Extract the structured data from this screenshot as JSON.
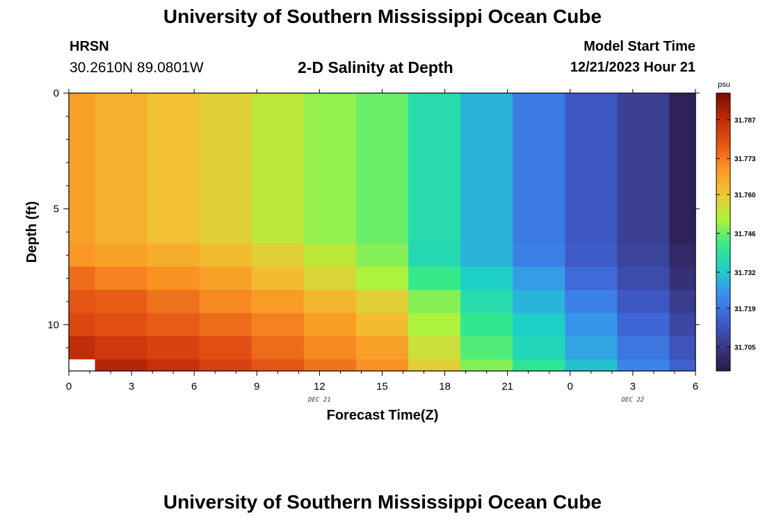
{
  "header": {
    "title": "University of Southern Mississippi Ocean Cube",
    "station": "HRSN",
    "coords": "30.2610N  89.0801W",
    "subtitle": "2-D Salinity at Depth",
    "model_label": "Model Start Time",
    "model_time": "12/21/2023 Hour 21"
  },
  "footer": {
    "title": "University of Southern Mississippi Ocean Cube"
  },
  "chart_data": {
    "type": "heatmap",
    "title": "2-D Salinity at Depth",
    "xlabel": "Forecast Time(Z)",
    "ylabel": "Depth (ft)",
    "x_tick_labels": [
      "0",
      "3",
      "6",
      "9",
      "12",
      "15",
      "18",
      "21",
      "0",
      "3",
      "6"
    ],
    "day_labels": [
      {
        "text": "DEC 21",
        "at_tick": 4
      },
      {
        "text": "DEC 22",
        "at_tick": 9
      }
    ],
    "y_ticks": [
      0,
      5,
      10
    ],
    "ylim": [
      0,
      12
    ],
    "y_inverted": true,
    "color_scale": {
      "unit": "psu",
      "tick_labels": [
        "31.787",
        "31.773",
        "31.760",
        "31.746",
        "31.732",
        "31.719",
        "31.705"
      ],
      "min": 31.6964,
      "max": 31.7966,
      "colors": [
        "#2b1845",
        "#3a3a8a",
        "#3f5fcf",
        "#3a8ef0",
        "#1ecfc8",
        "#35ea8a",
        "#aef23c",
        "#f0c434",
        "#fb9624",
        "#e45215",
        "#c02b08",
        "#7a0d03"
      ]
    },
    "time_bins": [
      "0-1.25",
      "1.25-3.75",
      "3.75-6.25",
      "6.25-8.75",
      "8.75-11.25",
      "11.25-13.75",
      "13.75-16.25",
      "16.25-18.75",
      "18.75-21.25",
      "21.25-23.75",
      "23.75-26.25",
      "26.25-28.75",
      "28.75-30"
    ],
    "depth_bins_ft": [
      [
        0,
        6.5
      ],
      [
        6.5,
        7.5
      ],
      [
        7.5,
        8.5
      ],
      [
        8.5,
        9.5
      ],
      [
        9.5,
        10.5
      ],
      [
        10.5,
        11.5
      ],
      [
        11.5,
        12
      ]
    ],
    "values": [
      [
        31.767,
        31.764,
        31.761,
        31.758,
        31.753,
        31.749,
        31.746,
        31.737,
        31.729,
        31.72,
        31.713,
        31.707,
        31.699
      ],
      [
        31.769,
        31.767,
        31.765,
        31.762,
        31.758,
        31.753,
        31.748,
        31.736,
        31.729,
        31.721,
        31.714,
        31.708,
        31.701
      ],
      [
        31.775,
        31.772,
        31.77,
        31.767,
        31.762,
        31.757,
        31.751,
        31.742,
        31.733,
        31.726,
        31.717,
        31.71,
        31.703
      ],
      [
        31.778,
        31.777,
        31.774,
        31.771,
        31.768,
        31.763,
        31.758,
        31.748,
        31.737,
        31.729,
        31.721,
        31.713,
        31.706
      ],
      [
        31.781,
        31.779,
        31.777,
        31.775,
        31.772,
        31.768,
        31.762,
        31.751,
        31.741,
        31.733,
        31.725,
        31.716,
        31.709
      ],
      [
        31.787,
        31.784,
        31.782,
        31.779,
        31.775,
        31.771,
        31.767,
        31.755,
        31.744,
        31.735,
        31.727,
        31.719,
        31.712
      ],
      [
        null,
        31.789,
        31.786,
        31.782,
        31.778,
        31.774,
        31.77,
        31.758,
        31.748,
        31.74,
        31.731,
        31.722,
        31.715
      ]
    ]
  }
}
